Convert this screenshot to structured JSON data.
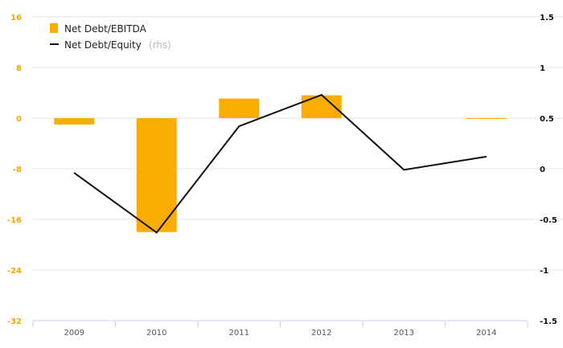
{
  "chart_data": {
    "type": "bar",
    "categories": [
      "2009",
      "2010",
      "2011",
      "2012",
      "2013",
      "2014"
    ],
    "series": [
      {
        "name": "Net Debt/EBITDA",
        "type": "bar",
        "axis": "left",
        "values": [
          -1,
          -18,
          3.1,
          3.6,
          null,
          -0.1
        ]
      },
      {
        "name": "Net Debt/Equity",
        "name_suffix": "(rhs)",
        "type": "line",
        "axis": "right",
        "values": [
          -0.04,
          -0.63,
          0.42,
          0.73,
          -0.01,
          0.12
        ]
      }
    ],
    "left_axis": {
      "ylim": [
        -32,
        16
      ],
      "ticks": [
        "16",
        "8",
        "0",
        "-8",
        "-16",
        "-24",
        "-32"
      ],
      "tick_values": [
        16,
        8,
        0,
        -8,
        -16,
        -24,
        -32
      ]
    },
    "right_axis": {
      "ylim": [
        -1.5,
        1.5
      ],
      "ticks": [
        "1.5",
        "1",
        "0.5",
        "0",
        "-0.5",
        "-1",
        "-1.5"
      ],
      "tick_values": [
        1.5,
        1,
        0.5,
        0,
        -0.5,
        -1,
        -1.5
      ]
    },
    "grid": true,
    "legend_position": "top-left",
    "colors": {
      "bar": "#f9ad00",
      "line": "#111111",
      "left_ticks": "#f5a800",
      "right_ticks": "#111111"
    }
  }
}
